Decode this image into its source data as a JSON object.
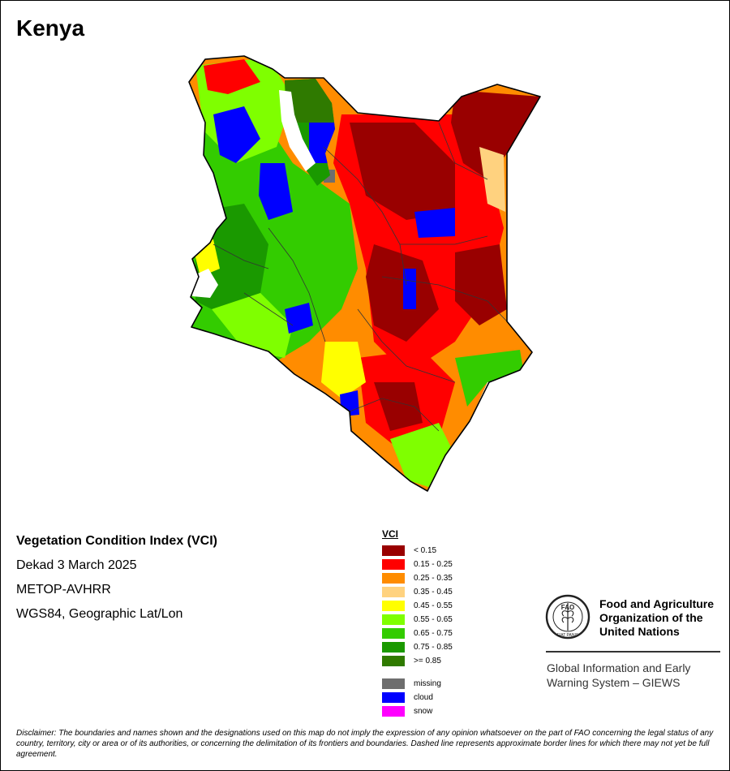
{
  "title": "Kenya",
  "map": {
    "colors": {
      "vci_lt_015": "#990000",
      "vci_015_025": "#ff0000",
      "vci_025_035": "#ff8c00",
      "vci_035_045": "#ffd27f",
      "vci_045_055": "#ffff00",
      "vci_055_065": "#7fff00",
      "vci_065_075": "#33cc00",
      "vci_075_085": "#1a9900",
      "vci_ge_085": "#2f7a00",
      "missing": "#6e6e6e",
      "cloud": "#0000ff",
      "snow": "#ff00ff"
    }
  },
  "info": {
    "heading": "Vegetation Condition Index (VCI)",
    "dekad": "Dekad 3 March 2025",
    "sensor": "METOP-AVHRR",
    "projection": "WGS84, Geographic Lat/Lon"
  },
  "legend": {
    "title": "VCI",
    "classes": [
      {
        "label": "< 0.15",
        "color": "#990000"
      },
      {
        "label": "0.15 - 0.25",
        "color": "#ff0000"
      },
      {
        "label": "0.25 - 0.35",
        "color": "#ff8c00"
      },
      {
        "label": "0.35 - 0.45",
        "color": "#ffd27f"
      },
      {
        "label": "0.45 - 0.55",
        "color": "#ffff00"
      },
      {
        "label": "0.55 - 0.65",
        "color": "#7fff00"
      },
      {
        "label": "0.65 - 0.75",
        "color": "#33cc00"
      },
      {
        "label": "0.75 - 0.85",
        "color": "#1a9900"
      },
      {
        "label": ">= 0.85",
        "color": "#2f7a00"
      }
    ],
    "extra": [
      {
        "label": "missing",
        "color": "#6e6e6e"
      },
      {
        "label": "cloud",
        "color": "#0000ff"
      },
      {
        "label": "snow",
        "color": "#ff00ff"
      }
    ]
  },
  "organization": {
    "logo_text": "FAO",
    "logo_motto": "FIAT PANIS",
    "name_lines": [
      "Food and Agriculture",
      "Organization of the",
      "United Nations"
    ],
    "program_lines": [
      "Global Information and Early",
      "Warning System – GIEWS"
    ]
  },
  "disclaimer": "Disclaimer: The boundaries and names shown and the designations used on this map do not imply the expression of any opinion whatsoever on the part of FAO concerning the legal status of any country, territory, city or area or of its authorities, or concerning the delimitation of its frontiers and boundaries. Dashed line represents approximate border lines for which there may not yet be full agreement."
}
